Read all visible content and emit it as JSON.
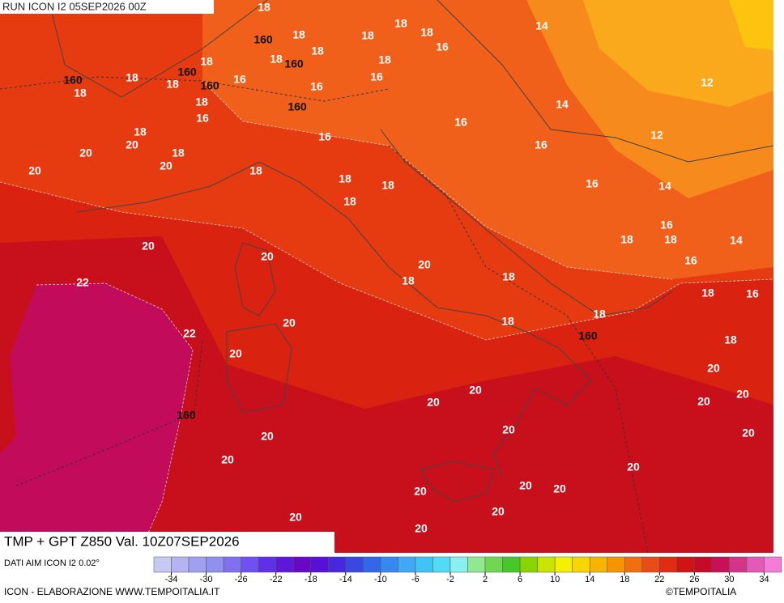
{
  "header": {
    "run": "RUN ICON I2 05SEP2026 00Z",
    "title": "TMP + GPT Z850 Val. 10Z07SEP2026",
    "source": "DATI AIM ICON I2 0.02°",
    "credit": "ICON - ELABORAZIONE WWW.TEMPOITALIA.IT",
    "copyright": "©TEMPOITALIA"
  },
  "map": {
    "contour_labels": [
      "18",
      "18",
      "18",
      "18",
      "18",
      "14",
      "160",
      "18",
      "160",
      "18",
      "16",
      "18",
      "160",
      "18",
      "18",
      "18",
      "160",
      "16",
      "16",
      "16",
      "160",
      "18",
      "12",
      "14",
      "18",
      "160",
      "16",
      "16",
      "18",
      "20",
      "18",
      "16",
      "16",
      "12",
      "20",
      "20",
      "20",
      "18",
      "18",
      "18",
      "18",
      "16",
      "14",
      "20",
      "20",
      "16",
      "18",
      "18",
      "14",
      "16",
      "20",
      "18",
      "18",
      "22",
      "18",
      "16",
      "18",
      "18",
      "20",
      "22",
      "160",
      "18",
      "20",
      "20",
      "20",
      "20",
      "20",
      "20",
      "160",
      "20",
      "20",
      "20",
      "20",
      "20",
      "20",
      "20",
      "20",
      "20",
      "20",
      "20",
      "20"
    ]
  },
  "colorbar": {
    "colors": [
      "#c8c8f4",
      "#b4b4f2",
      "#a0a0f0",
      "#9090ee",
      "#8070ee",
      "#7050ee",
      "#6030e6",
      "#6018d8",
      "#6808c4",
      "#5810d4",
      "#4828dc",
      "#3848e0",
      "#3068e8",
      "#3488f0",
      "#40a8f4",
      "#40c4f4",
      "#50dcf4",
      "#88f0f0",
      "#90e890",
      "#70d850",
      "#48c828",
      "#88d400",
      "#c8e400",
      "#f4f000",
      "#f8d400",
      "#f8b400",
      "#f89400",
      "#f07010",
      "#e84c18",
      "#e02c10",
      "#d01414",
      "#c40c28",
      "#c81058",
      "#d43488",
      "#e458b8",
      "#f47cd8"
    ],
    "ticks": [
      -34,
      -30,
      -26,
      -22,
      -18,
      -14,
      -10,
      -6,
      -2,
      2,
      6,
      10,
      14,
      18,
      22,
      26,
      30,
      34
    ]
  }
}
